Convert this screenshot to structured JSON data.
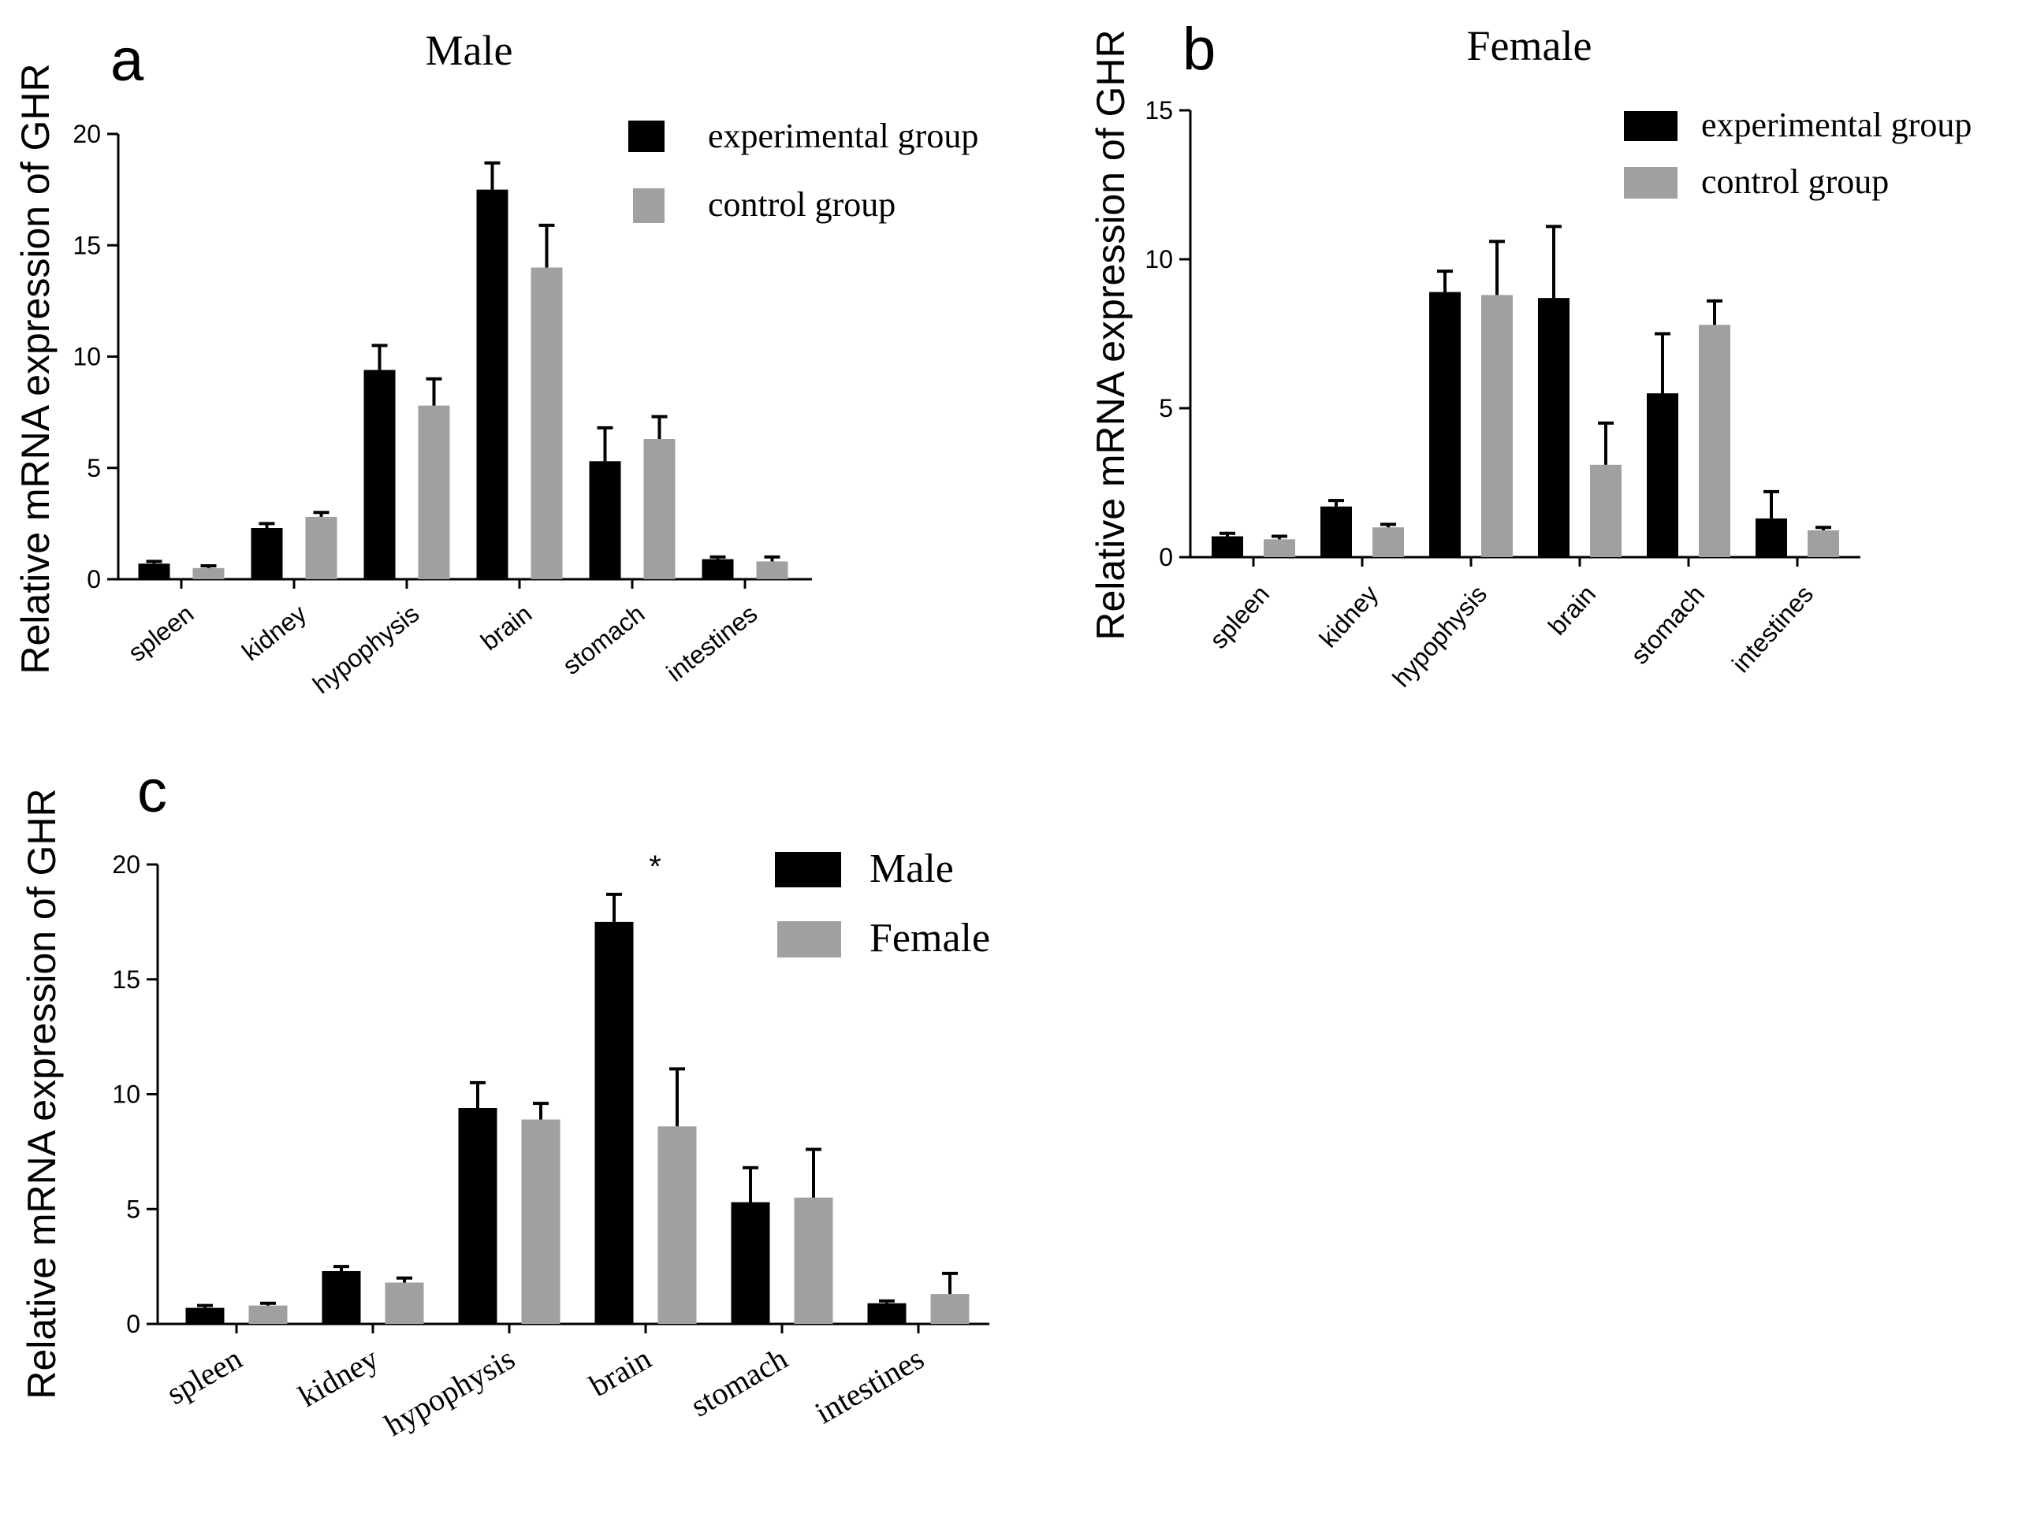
{
  "figure": {
    "panels": [
      "a",
      "b",
      "c"
    ]
  },
  "chart_data": [
    {
      "id": "a",
      "type": "bar",
      "panel_label": "a",
      "title": "Male",
      "ylabel": "Relative mRNA expression of GHR",
      "xlabel": "",
      "ylim": [
        0,
        20
      ],
      "yticks": [
        "0",
        "5",
        "10",
        "15",
        "20"
      ],
      "categories": [
        "spleen",
        "kidney",
        "hypophysis",
        "brain",
        "stomach",
        "intestines"
      ],
      "series": [
        {
          "name": "experimental group",
          "color": "#000000",
          "values": [
            0.7,
            2.3,
            9.4,
            17.5,
            5.3,
            0.9
          ],
          "errors": [
            0.1,
            0.2,
            1.1,
            1.2,
            1.5,
            0.1
          ]
        },
        {
          "name": "control group",
          "color": "#a0a0a0",
          "values": [
            0.5,
            2.8,
            7.8,
            14.0,
            6.3,
            0.8
          ],
          "errors": [
            0.1,
            0.2,
            1.2,
            1.9,
            1.0,
            0.2
          ]
        }
      ],
      "legend": [
        "experimental group",
        "control group"
      ],
      "legend_position": "top-right"
    },
    {
      "id": "b",
      "type": "bar",
      "panel_label": "b",
      "title": "Female",
      "ylabel": "Relative mRNA expression of GHR",
      "xlabel": "",
      "ylim": [
        0,
        15
      ],
      "yticks": [
        "0",
        "5",
        "10",
        "15"
      ],
      "categories": [
        "spleen",
        "kidney",
        "hypophysis",
        "brain",
        "stomach",
        "intestines"
      ],
      "series": [
        {
          "name": "experimental group",
          "color": "#000000",
          "values": [
            0.7,
            1.7,
            8.9,
            8.7,
            5.5,
            1.3
          ],
          "errors": [
            0.1,
            0.2,
            0.7,
            2.4,
            2.0,
            0.9
          ]
        },
        {
          "name": "control group",
          "color": "#a0a0a0",
          "values": [
            0.6,
            1.0,
            8.8,
            3.1,
            7.8,
            0.9
          ],
          "errors": [
            0.1,
            0.1,
            1.8,
            1.4,
            0.8,
            0.1
          ]
        }
      ],
      "legend": [
        "experimental group",
        "control group"
      ],
      "legend_position": "top-right"
    },
    {
      "id": "c",
      "type": "bar",
      "panel_label": "c",
      "title": "",
      "ylabel": "Relative mRNA expression of GHR",
      "xlabel": "",
      "ylim": [
        0,
        20
      ],
      "yticks": [
        "0",
        "5",
        "10",
        "15",
        "20"
      ],
      "categories": [
        "spleen",
        "kidney",
        "hypophysis",
        "brain",
        "stomach",
        "intestines"
      ],
      "series": [
        {
          "name": "Male",
          "color": "#000000",
          "values": [
            0.7,
            2.3,
            9.4,
            17.5,
            5.3,
            0.9
          ],
          "errors": [
            0.1,
            0.2,
            1.1,
            1.2,
            1.5,
            0.1
          ]
        },
        {
          "name": "Female",
          "color": "#a0a0a0",
          "values": [
            0.8,
            1.8,
            8.9,
            8.6,
            5.5,
            1.3
          ],
          "errors": [
            0.1,
            0.2,
            0.7,
            2.5,
            2.1,
            0.9
          ]
        }
      ],
      "legend": [
        "Male",
        "Female"
      ],
      "legend_position": "top-right",
      "annotations": [
        {
          "category": "brain",
          "text": "*"
        }
      ]
    }
  ]
}
